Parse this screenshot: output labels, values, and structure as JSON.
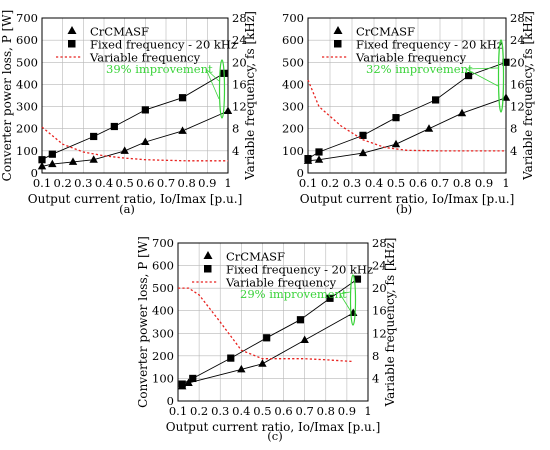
{
  "chart_data": [
    {
      "panel_label": "(a)",
      "type": "line",
      "xlabel": "Output current ratio, Io/Imax [p.u.]",
      "ylabel": "Converter power loss, P [W]",
      "y2label": "Variable frequency, fs [kHz]",
      "xlim": [
        0.1,
        1
      ],
      "ylim": [
        0,
        700
      ],
      "y2lim": [
        0,
        28
      ],
      "xticks": [
        "0.1",
        "0.2",
        "0.3",
        "0.4",
        "0.5",
        "0.6",
        "0.7",
        "0.8",
        "0.9",
        "1"
      ],
      "yticks": [
        "0",
        "100",
        "200",
        "300",
        "400",
        "500",
        "600",
        "700"
      ],
      "y2ticks": [
        "4",
        "8",
        "12",
        "16",
        "20",
        "24",
        "28"
      ],
      "annotation": "39% improvement",
      "legend_position": "top-center",
      "series": [
        {
          "name": "CrCMASF",
          "axis": "left",
          "marker": "triangle",
          "style": "solid",
          "x": [
            0.1,
            0.15,
            0.25,
            0.35,
            0.5,
            0.6,
            0.78,
            1.0
          ],
          "y": [
            30,
            40,
            50,
            60,
            100,
            140,
            190,
            280
          ]
        },
        {
          "name": "Fixed frequency - 20 kHz",
          "axis": "left",
          "marker": "square",
          "style": "solid",
          "x": [
            0.1,
            0.15,
            0.35,
            0.45,
            0.6,
            0.78,
            0.98
          ],
          "y": [
            60,
            85,
            165,
            210,
            285,
            340,
            450
          ]
        },
        {
          "name": "Variable frequency",
          "axis": "right",
          "marker": "none",
          "style": "dotted",
          "color": "#e8211e",
          "x": [
            0.1,
            0.2,
            0.3,
            0.4,
            0.5,
            0.6,
            0.7,
            0.8,
            0.9,
            1.0
          ],
          "y": [
            8.3,
            5.2,
            3.8,
            3.1,
            2.7,
            2.4,
            2.3,
            2.2,
            2.2,
            2.2
          ]
        }
      ]
    },
    {
      "panel_label": "(b)",
      "type": "line",
      "xlabel": "Output current ratio, Io/Imax [p.u.]",
      "ylabel": "",
      "y2label": "Variable frequency, fs [kHz]",
      "xlim": [
        0.1,
        1
      ],
      "ylim": [
        0,
        700
      ],
      "y2lim": [
        0,
        28
      ],
      "xticks": [
        "0.1",
        "0.2",
        "0.3",
        "0.4",
        "0.5",
        "0.6",
        "0.7",
        "0.8",
        "0.9",
        "1"
      ],
      "yticks": [
        "0",
        "100",
        "200",
        "300",
        "400",
        "500",
        "600",
        "700"
      ],
      "y2ticks": [
        "4",
        "8",
        "12",
        "16",
        "20",
        "24",
        "28"
      ],
      "annotation": "32% improvement",
      "legend_position": "top-center",
      "series": [
        {
          "name": "CrCMASF",
          "axis": "left",
          "marker": "triangle",
          "style": "solid",
          "x": [
            0.1,
            0.15,
            0.35,
            0.5,
            0.65,
            0.8,
            1.0
          ],
          "y": [
            55,
            60,
            90,
            130,
            200,
            270,
            340
          ]
        },
        {
          "name": "Fixed frequency - 20 kHz",
          "axis": "left",
          "marker": "square",
          "style": "solid",
          "x": [
            0.1,
            0.15,
            0.35,
            0.5,
            0.68,
            0.83,
            1.0
          ],
          "y": [
            65,
            95,
            170,
            250,
            330,
            440,
            500
          ]
        },
        {
          "name": "Variable frequency",
          "axis": "right",
          "marker": "none",
          "style": "dotted",
          "color": "#e8211e",
          "x": [
            0.1,
            0.15,
            0.25,
            0.35,
            0.45,
            0.55,
            0.7,
            0.85,
            1.0
          ],
          "y": [
            16.8,
            12.0,
            8.5,
            6.0,
            4.6,
            4.1,
            4.0,
            4.0,
            4.0
          ]
        }
      ]
    },
    {
      "panel_label": "(c)",
      "type": "line",
      "xlabel": "Output current ratio, Io/Imax [p.u.]",
      "ylabel": "Converter power loss, P [W]",
      "y2label": "Variable frequency, fs [kHz]",
      "xlim": [
        0.1,
        1
      ],
      "ylim": [
        0,
        700
      ],
      "y2lim": [
        0,
        28
      ],
      "xticks": [
        "0.1",
        "0.2",
        "0.3",
        "0.4",
        "0.5",
        "0.6",
        "0.7",
        "0.8",
        "0.9",
        "1"
      ],
      "yticks": [
        "0",
        "100",
        "200",
        "300",
        "400",
        "500",
        "600",
        "700"
      ],
      "y2ticks": [
        "4",
        "8",
        "12",
        "16",
        "20",
        "24",
        "28"
      ],
      "annotation": "29% improvement",
      "legend_position": "top-center",
      "series": [
        {
          "name": "CrCMASF",
          "axis": "left",
          "marker": "triangle",
          "style": "solid",
          "x": [
            0.12,
            0.15,
            0.4,
            0.5,
            0.7,
            0.93
          ],
          "y": [
            65,
            80,
            140,
            165,
            270,
            390
          ]
        },
        {
          "name": "Fixed frequency - 20 kHz",
          "axis": "left",
          "marker": "square",
          "style": "solid",
          "x": [
            0.12,
            0.17,
            0.35,
            0.52,
            0.68,
            0.82,
            0.95
          ],
          "y": [
            75,
            100,
            190,
            280,
            360,
            455,
            540
          ]
        },
        {
          "name": "Variable frequency",
          "axis": "right",
          "marker": "none",
          "style": "dotted",
          "color": "#e8211e",
          "x": [
            0.1,
            0.15,
            0.2,
            0.3,
            0.4,
            0.5,
            0.6,
            0.7,
            0.8,
            0.93
          ],
          "y": [
            20.0,
            20.0,
            18.8,
            14.0,
            9.0,
            7.5,
            7.5,
            7.5,
            7.3,
            7.0
          ]
        }
      ]
    }
  ]
}
